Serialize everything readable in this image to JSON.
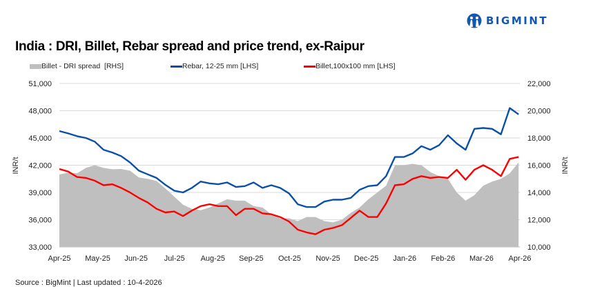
{
  "logo": {
    "text": "BIGMINT",
    "color": "#1557b0"
  },
  "title": "India : DRI, Billet, Rebar spread and price trend, ex-Raipur",
  "source": "Source : BigMint | Last updated : 10-4-2026",
  "chart_data": {
    "type": "line+area",
    "title": "India : DRI, Billet, Rebar spread and price trend, ex-Raipur",
    "ylabel_left": "INR/t",
    "ylabel_right": "INR/t",
    "ylim_left": [
      33000,
      51000
    ],
    "ylim_right": [
      10000,
      22000
    ],
    "yticks_left": [
      "33,000",
      "36,000",
      "39,000",
      "42,000",
      "45,000",
      "48,000",
      "51,000"
    ],
    "yticks_right": [
      "10,000",
      "12,000",
      "14,000",
      "16,000",
      "18,000",
      "20,000",
      "22,000"
    ],
    "xlim": [
      "2025-04-01",
      "2026-04-01"
    ],
    "xticks": [
      "Apr-25",
      "May-25",
      "Jun-25",
      "Jul-25",
      "Aug-25",
      "Sep-25",
      "Oct-25",
      "Nov-25",
      "Dec-25",
      "Jan-26",
      "Feb-26",
      "Mar-26",
      "Apr-26"
    ],
    "grid": true,
    "legend_position": "top",
    "x": [
      "2025-04-01",
      "2025-04-08",
      "2025-04-15",
      "2025-04-22",
      "2025-04-29",
      "2025-05-06",
      "2025-05-13",
      "2025-05-20",
      "2025-05-27",
      "2025-06-03",
      "2025-06-10",
      "2025-06-17",
      "2025-06-24",
      "2025-07-01",
      "2025-07-08",
      "2025-07-15",
      "2025-07-22",
      "2025-07-29",
      "2025-08-05",
      "2025-08-12",
      "2025-08-19",
      "2025-08-26",
      "2025-09-02",
      "2025-09-09",
      "2025-09-16",
      "2025-09-23",
      "2025-09-30",
      "2025-10-07",
      "2025-10-14",
      "2025-10-21",
      "2025-10-28",
      "2025-11-04",
      "2025-11-11",
      "2025-11-18",
      "2025-11-25",
      "2025-12-02",
      "2025-12-09",
      "2025-12-16",
      "2025-12-23",
      "2025-12-30",
      "2026-01-06",
      "2026-01-13",
      "2026-01-20",
      "2026-01-27",
      "2026-02-03",
      "2026-02-10",
      "2026-02-17",
      "2026-02-24",
      "2026-03-03",
      "2026-03-10",
      "2026-03-17",
      "2026-03-24",
      "2026-03-31"
    ],
    "series": [
      {
        "name": "Billet - DRI spread  [RHS]",
        "type": "area",
        "axis": "right",
        "color": "#bfbfbf",
        "values": [
          15320,
          15450,
          15400,
          15800,
          16000,
          15800,
          15700,
          15720,
          15600,
          15100,
          15000,
          14850,
          14300,
          13700,
          13100,
          12800,
          12700,
          12900,
          13200,
          13500,
          13400,
          13400,
          13000,
          12900,
          12400,
          12100,
          12100,
          11900,
          12200,
          12200,
          11900,
          11800,
          12000,
          12500,
          12900,
          13500,
          14000,
          14500,
          16000,
          16000,
          16100,
          16000,
          15500,
          15200,
          15000,
          14000,
          13400,
          13800,
          14500,
          14800,
          15000,
          15400,
          16200
        ]
      },
      {
        "name": "Rebar, 12-25 mm [LHS]",
        "type": "line",
        "axis": "left",
        "color": "#0a4fa8",
        "values": [
          45760,
          45500,
          45200,
          45000,
          44600,
          43700,
          43400,
          43000,
          42300,
          41400,
          41000,
          40600,
          39840,
          39200,
          39000,
          39500,
          40200,
          40000,
          39900,
          40100,
          39600,
          39700,
          40100,
          39500,
          39800,
          39500,
          38900,
          37700,
          37400,
          37400,
          38000,
          38200,
          38200,
          38400,
          39300,
          39700,
          39800,
          40800,
          42900,
          42900,
          43300,
          44100,
          43700,
          44200,
          45300,
          44400,
          43700,
          46000,
          46100,
          46000,
          45400,
          48300,
          47600
        ]
      },
      {
        "name": "Billet,100x100 mm [LHS]",
        "type": "line",
        "axis": "left",
        "color": "#ff0000",
        "values": [
          41580,
          41300,
          40700,
          40600,
          40300,
          39800,
          39900,
          39500,
          39000,
          38400,
          37900,
          37200,
          36800,
          36900,
          36400,
          37000,
          37500,
          37700,
          37500,
          37500,
          36500,
          37200,
          37200,
          36700,
          36600,
          36300,
          35800,
          34900,
          34600,
          34400,
          34900,
          35100,
          35400,
          36200,
          37000,
          36300,
          36300,
          37800,
          39800,
          39900,
          40500,
          40800,
          40600,
          40700,
          40600,
          41500,
          40400,
          41500,
          42000,
          41500,
          40800,
          42700,
          42900
        ]
      }
    ]
  }
}
